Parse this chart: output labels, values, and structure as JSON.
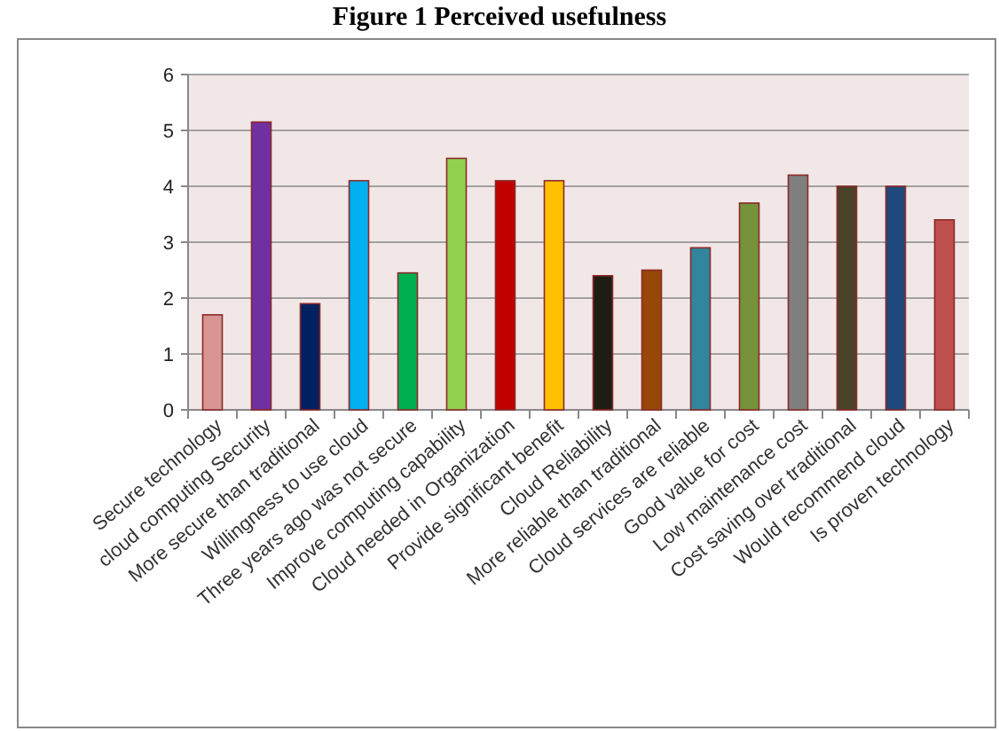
{
  "chart_data": {
    "type": "bar",
    "title": "Figure 1 Perceived usefulness",
    "categories": [
      "Secure technology",
      "cloud computing Security",
      "More secure than traditional",
      "Willingness to use cloud",
      "Three years ago was not secure",
      "Improve computing capability",
      "Cloud needed in Organization",
      "Provide significant benefit",
      "Cloud Reliability",
      "More reliable than traditional",
      "Cloud services are reliable",
      "Good value for cost",
      "Low maintenance cost",
      "Cost saving over traditional",
      "Would recommend cloud",
      "Is proven technology"
    ],
    "values": [
      1.7,
      5.15,
      1.9,
      4.1,
      2.45,
      4.5,
      4.1,
      4.1,
      2.4,
      2.5,
      2.9,
      3.7,
      4.2,
      4.0,
      4.0,
      3.4
    ],
    "colors": [
      "#d99594",
      "#7030a0",
      "#002060",
      "#00b0f0",
      "#00b050",
      "#92d050",
      "#c00000",
      "#ffc000",
      "#1f1c14",
      "#974806",
      "#31859c",
      "#76923c",
      "#7f7f7f",
      "#4a4229",
      "#1f497d",
      "#c0504d"
    ],
    "ylim": [
      0,
      6
    ],
    "yticks": [
      0,
      1,
      2,
      3,
      4,
      5,
      6
    ],
    "grid": "y"
  }
}
